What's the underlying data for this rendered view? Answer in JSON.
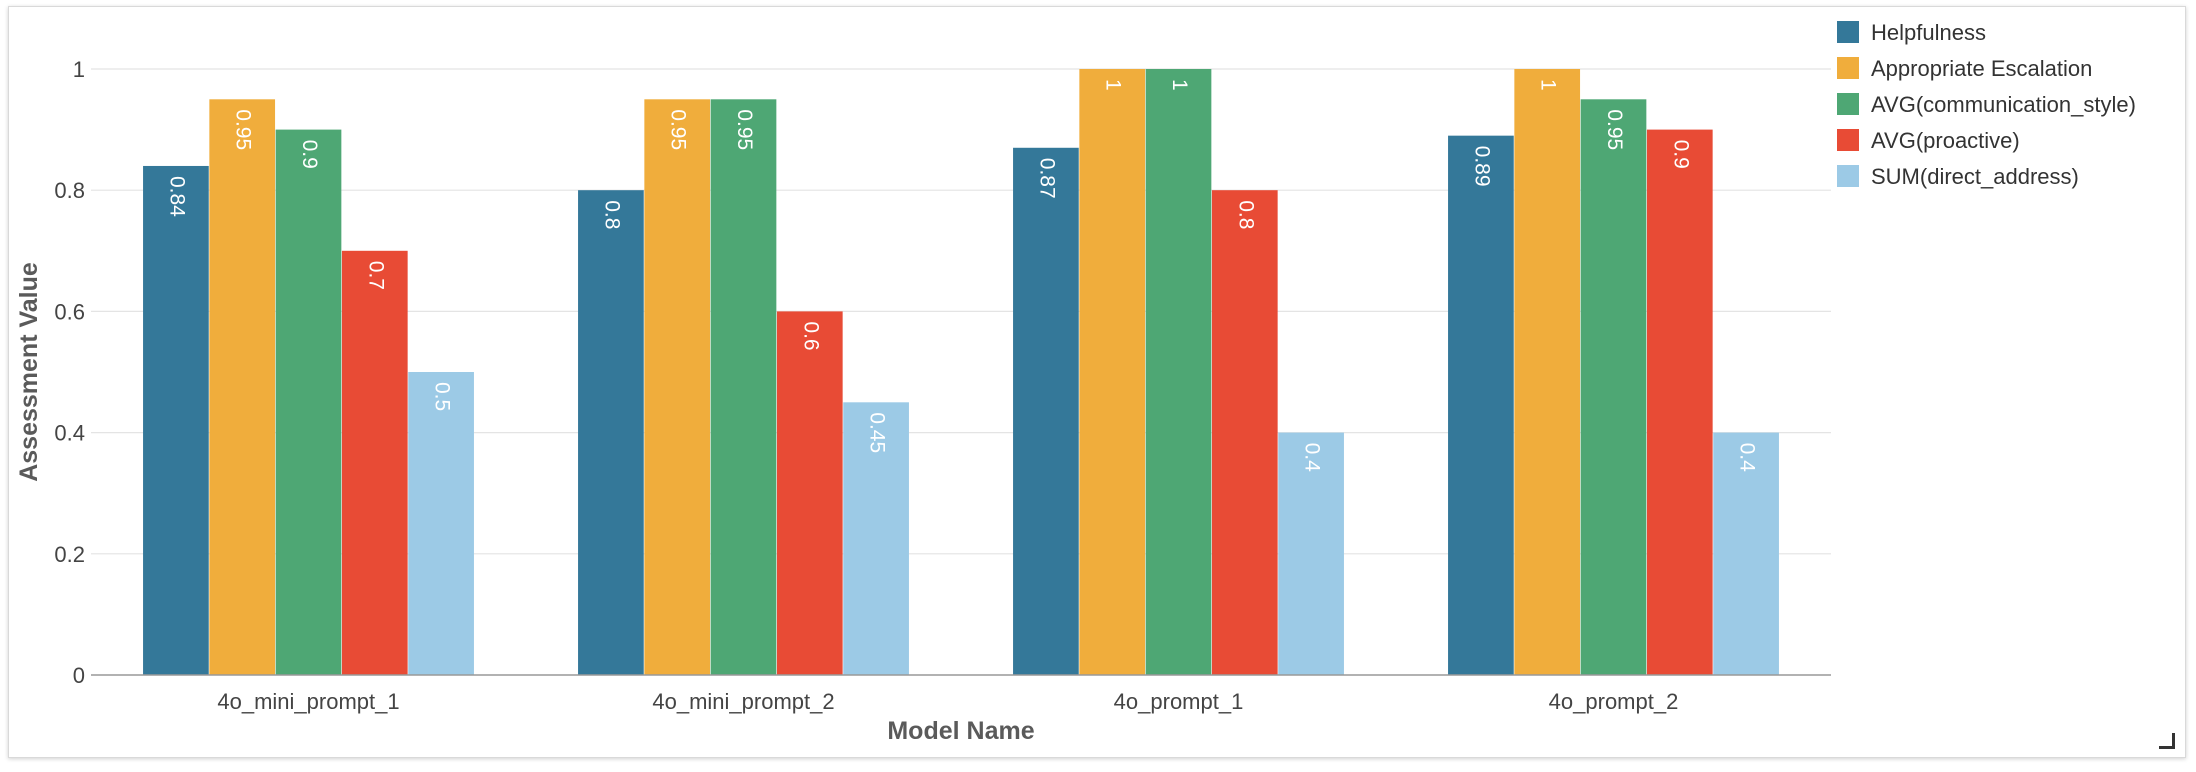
{
  "chart_data": {
    "type": "bar",
    "xlabel": "Model Name",
    "ylabel": "Assessment Value",
    "categories": [
      "4o_mini_prompt_1",
      "4o_mini_prompt_2",
      "4o_prompt_1",
      "4o_prompt_2"
    ],
    "ylim": [
      0,
      1
    ],
    "yticks": [
      0,
      0.2,
      0.4,
      0.6,
      0.8,
      1
    ],
    "grid": true,
    "legend_position": "top-right",
    "series": [
      {
        "name": "Helpfulness",
        "color": "#347899",
        "values": [
          0.84,
          0.8,
          0.87,
          0.89
        ],
        "labels": [
          "0.84",
          "0.8",
          "0.87",
          "0.89"
        ]
      },
      {
        "name": "Appropriate Escalation",
        "color": "#f0ad3c",
        "values": [
          0.95,
          0.95,
          1,
          1
        ],
        "labels": [
          "0.95",
          "0.95",
          "1",
          "1"
        ]
      },
      {
        "name": "AVG(communication_style)",
        "color": "#4ea774",
        "values": [
          0.9,
          0.95,
          1,
          0.95
        ],
        "labels": [
          "0.9",
          "0.95",
          "1",
          "0.95"
        ]
      },
      {
        "name": "AVG(proactive)",
        "color": "#e84b35",
        "values": [
          0.7,
          0.6,
          0.8,
          0.9
        ],
        "labels": [
          "0.7",
          "0.6",
          "0.8",
          "0.9"
        ]
      },
      {
        "name": "SUM(direct_address)",
        "color": "#9ccae6",
        "values": [
          0.5,
          0.45,
          0.4,
          0.4
        ],
        "labels": [
          "0.5",
          "0.45",
          "0.4",
          "0.4"
        ]
      }
    ]
  }
}
